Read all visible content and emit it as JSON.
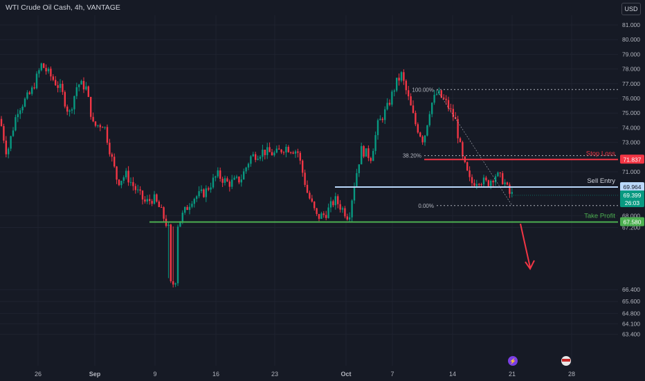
{
  "header": {
    "title": "WTI Crude Oil Cash, 4h, VANTAGE",
    "currency_button": "USD"
  },
  "chart_data": {
    "type": "candlestick",
    "ylim": [
      63.0,
      81.8
    ],
    "y_ticks": [
      "81.000",
      "80.000",
      "79.000",
      "78.000",
      "77.000",
      "76.000",
      "75.000",
      "74.000",
      "73.000",
      "72.000",
      "71.000",
      "68.000",
      "67.200",
      "66.400",
      "65.600",
      "64.800",
      "64.100",
      "63.400"
    ],
    "x_ticks": [
      "26",
      "Sep",
      "9",
      "16",
      "23",
      "Oct",
      "7",
      "14",
      "21",
      "28"
    ],
    "price_labels": [
      {
        "name": "Stop Loss",
        "value": 71.837,
        "text": "71.837",
        "color": "#f23645"
      },
      {
        "name": "Sell Entry",
        "value": 69.964,
        "text": "69.964",
        "color": "#bbd9fb"
      },
      {
        "name": "Take Profit",
        "value": 67.58,
        "text": "67.580",
        "color": "#4caf50"
      }
    ],
    "last_price": {
      "value": 69.399,
      "text": "69.399",
      "countdown": "26:03"
    },
    "fib_levels": [
      {
        "label": "100.00%",
        "value": 76.6
      },
      {
        "label": "38.20%",
        "value": 72.1
      },
      {
        "label": "0.00%",
        "value": 68.7
      }
    ],
    "colors": {
      "up": "#089981",
      "down": "#f23645",
      "background": "#161a25",
      "grid": "#1f2330"
    }
  }
}
